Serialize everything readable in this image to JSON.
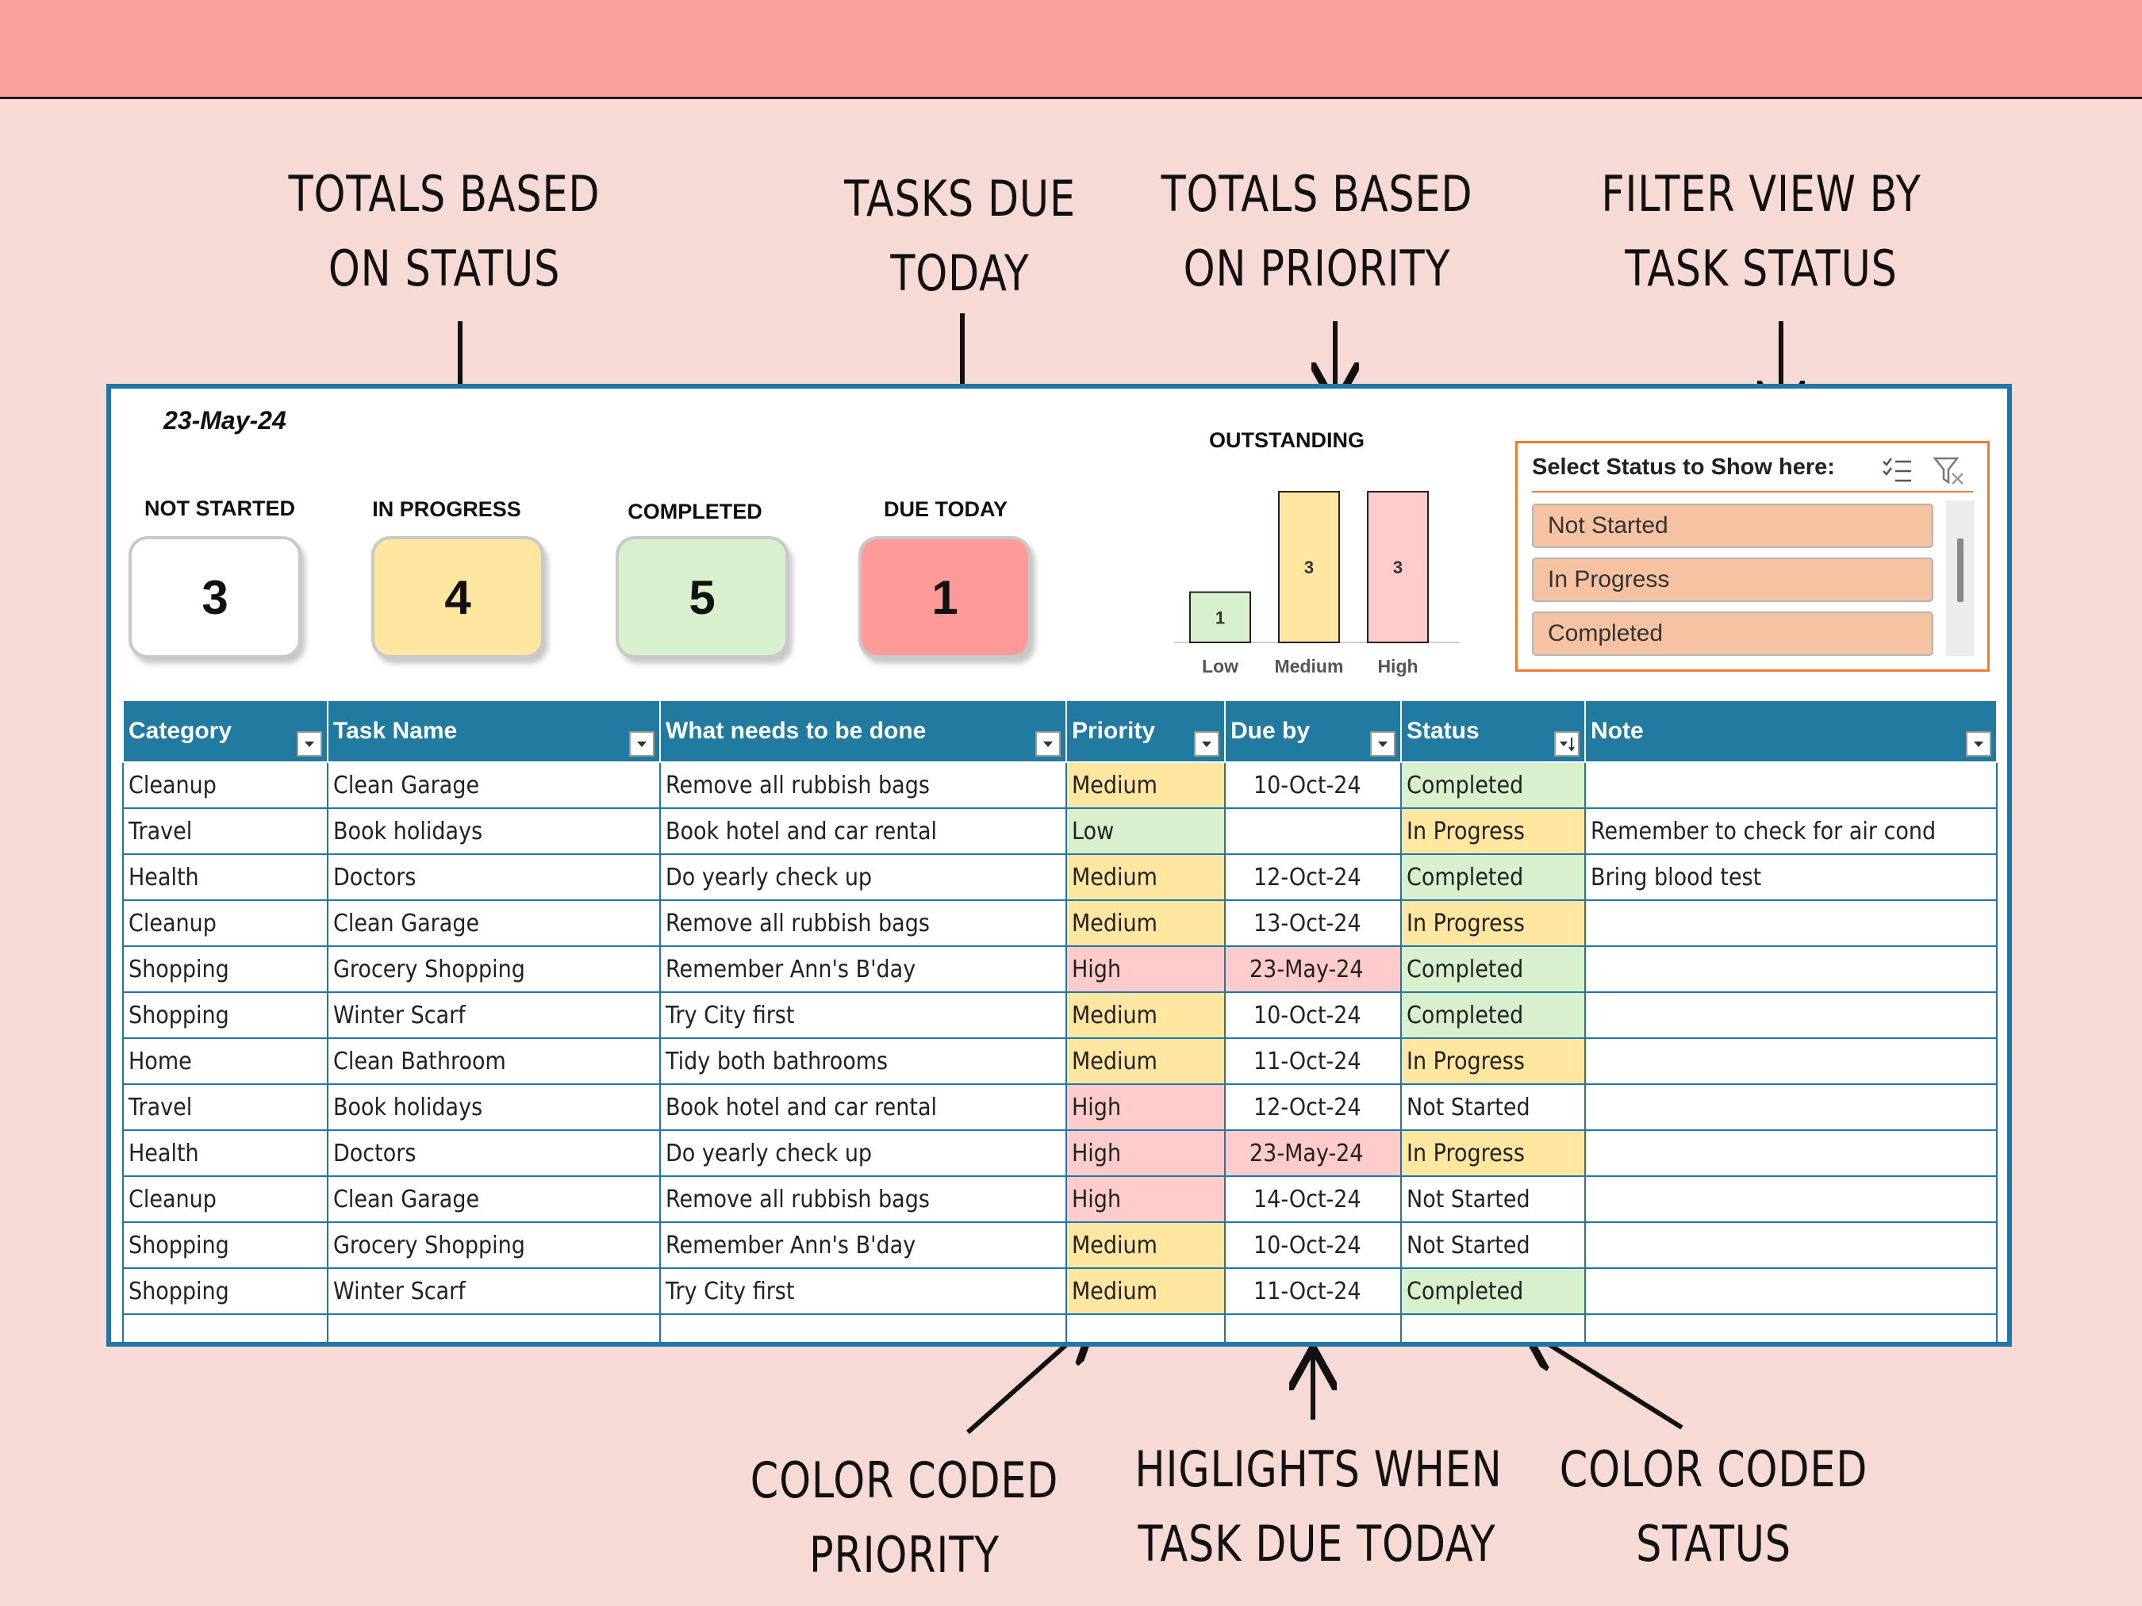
{
  "colors": {
    "background": "#F7D9D5",
    "topbar": "#FCA09F",
    "accent": "#1F77A8",
    "header": "#217AA0",
    "slicer_border": "#ED7D31",
    "medium": "#FFE6A1",
    "low": "#D8F0CE",
    "high": "#FFCBCB"
  },
  "annotations": {
    "status_totals": [
      "TOTALS BASED",
      "ON STATUS"
    ],
    "due_today": [
      "TASKS DUE",
      "TODAY"
    ],
    "priority_totals": [
      "TOTALS BASED",
      "ON PRIORITY"
    ],
    "filter_view": [
      "FILTER VIEW BY",
      "TASK STATUS"
    ],
    "color_priority": [
      "COLOR CODED",
      "PRIORITY"
    ],
    "highlight_due": [
      "HIGLIGHTS WHEN",
      "TASK DUE TODAY"
    ],
    "color_status": [
      "COLOR CODED",
      "STATUS"
    ]
  },
  "sheet": {
    "date": "23-May-24",
    "kpis": [
      {
        "label": "NOT STARTED",
        "value": "3",
        "color": "#FFFFFF"
      },
      {
        "label": "IN PROGRESS",
        "value": "4",
        "color": "#FFE6A1"
      },
      {
        "label": "COMPLETED",
        "value": "5",
        "color": "#D8F0CE"
      },
      {
        "label": "DUE TODAY",
        "value": "1",
        "color": "#FF9A9A"
      }
    ]
  },
  "chart_data": {
    "type": "bar",
    "title": "OUTSTANDING",
    "categories": [
      "Low",
      "Medium",
      "High"
    ],
    "values": [
      1,
      3,
      3
    ],
    "colors": [
      "#D8F0CE",
      "#FFE6A1",
      "#FFCBCB"
    ],
    "ylim": [
      0,
      3
    ],
    "grid": false
  },
  "slicer": {
    "title": "Select Status to Show here:",
    "items": [
      "Not Started",
      "In Progress",
      "Completed"
    ],
    "icons": [
      "multi-select-icon",
      "clear-filter-icon"
    ]
  },
  "table": {
    "columns": [
      "Category",
      "Task Name",
      "What needs to be done",
      "Priority",
      "Due by",
      "Status",
      "Note"
    ],
    "rows": [
      [
        "Cleanup",
        "Clean Garage",
        "Remove all rubbish bags",
        "Medium",
        "10-Oct-24",
        "Completed",
        ""
      ],
      [
        "Travel",
        "Book holidays",
        "Book hotel and car rental",
        "Low",
        "",
        "In Progress",
        "Remember to check for air cond"
      ],
      [
        "Health",
        "Doctors",
        "Do yearly check up",
        "Medium",
        "12-Oct-24",
        "Completed",
        "Bring blood test"
      ],
      [
        "Cleanup",
        "Clean Garage",
        "Remove all rubbish bags",
        "Medium",
        "13-Oct-24",
        "In Progress",
        ""
      ],
      [
        "Shopping",
        "Grocery Shopping",
        "Remember Ann's B'day",
        "High",
        "23-May-24",
        "Completed",
        ""
      ],
      [
        "Shopping",
        "Winter Scarf",
        "Try City first",
        "Medium",
        "10-Oct-24",
        "Completed",
        ""
      ],
      [
        "Home",
        "Clean Bathroom",
        "Tidy both bathrooms",
        "Medium",
        "11-Oct-24",
        "In Progress",
        ""
      ],
      [
        "Travel",
        "Book holidays",
        "Book hotel and car rental",
        "High",
        "12-Oct-24",
        "Not Started",
        ""
      ],
      [
        "Health",
        "Doctors",
        "Do yearly check up",
        "High",
        "23-May-24",
        "In Progress",
        ""
      ],
      [
        "Cleanup",
        "Clean Garage",
        "Remove all rubbish bags",
        "High",
        "14-Oct-24",
        "Not Started",
        ""
      ],
      [
        "Shopping",
        "Grocery Shopping",
        "Remember Ann's B'day",
        "Medium",
        "10-Oct-24",
        "Not Started",
        ""
      ],
      [
        "Shopping",
        "Winter Scarf",
        "Try City first",
        "Medium",
        "11-Oct-24",
        "Completed",
        ""
      ],
      [
        "",
        "",
        "",
        "",
        "",
        "",
        ""
      ]
    ]
  }
}
